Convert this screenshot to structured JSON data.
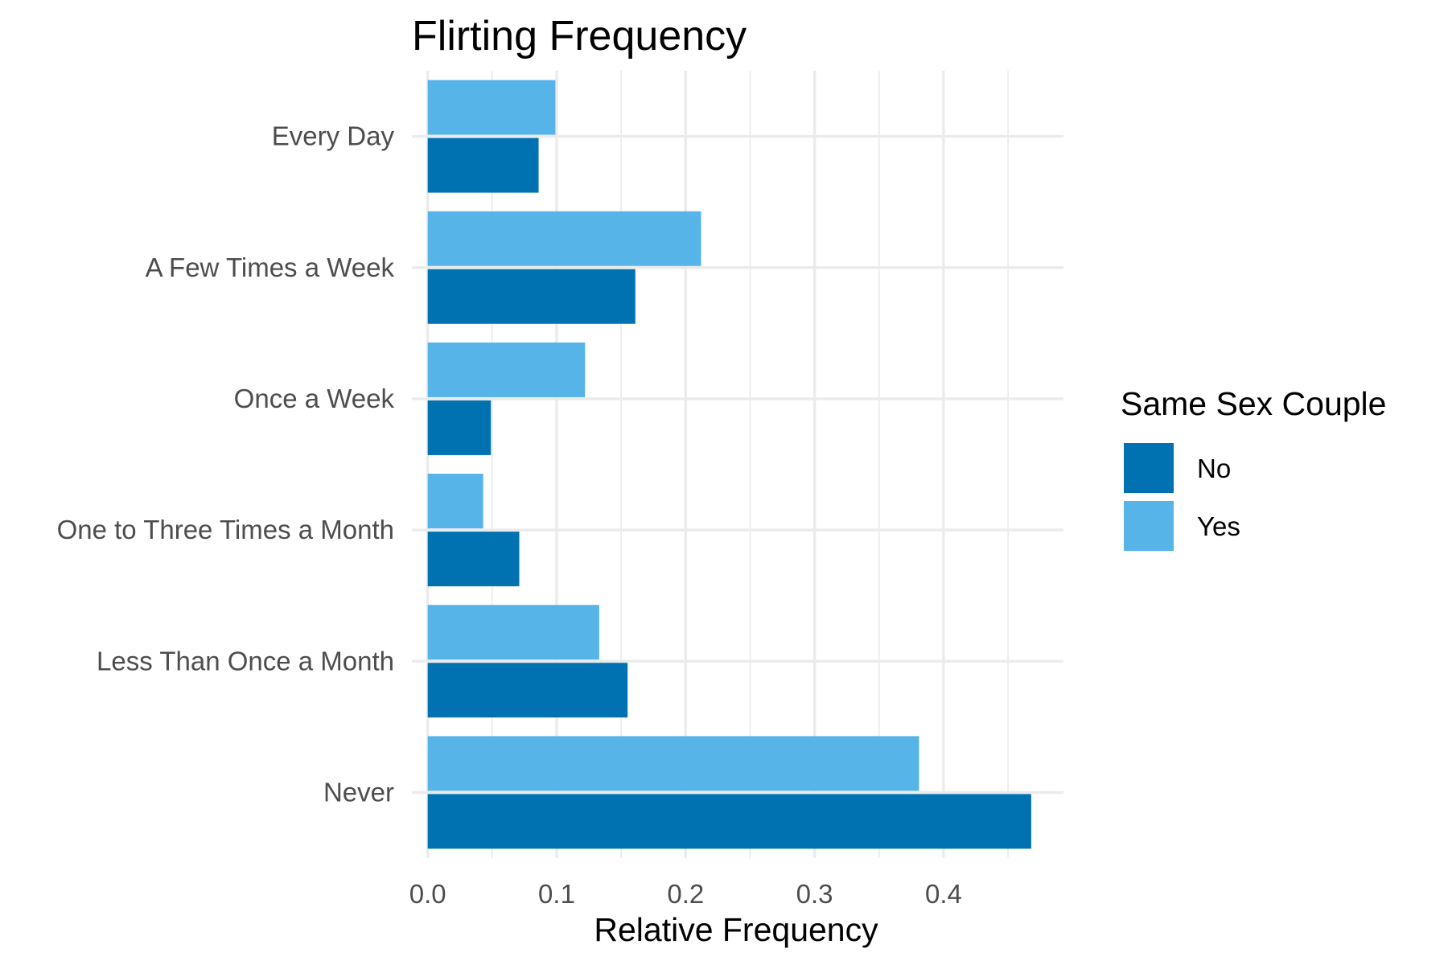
{
  "chart_data": {
    "type": "bar",
    "orientation": "horizontal",
    "title": "Flirting Frequency",
    "xlabel": "Relative Frequency",
    "ylabel": "",
    "categories": [
      "Never",
      "Less Than Once a Month",
      "One to Three Times a Month",
      "Once a Week",
      "A Few Times a Week",
      "Every Day"
    ],
    "series": [
      {
        "name": "No",
        "color": "#0072b2",
        "values": [
          0.468,
          0.155,
          0.071,
          0.049,
          0.161,
          0.086
        ]
      },
      {
        "name": "Yes",
        "color": "#56b4e9",
        "values": [
          0.381,
          0.133,
          0.043,
          0.122,
          0.212,
          0.099
        ]
      }
    ],
    "xlim": [
      -0.0023,
      0.493
    ],
    "x_ticks": [
      "0.0",
      "0.1",
      "0.2",
      "0.3",
      "0.4"
    ],
    "x_tick_values": [
      0,
      0.1,
      0.2,
      0.3,
      0.4
    ],
    "grid": true,
    "legend": {
      "title": "Same Sex Couple",
      "placement": "right",
      "entries": [
        "No",
        "Yes"
      ]
    }
  }
}
